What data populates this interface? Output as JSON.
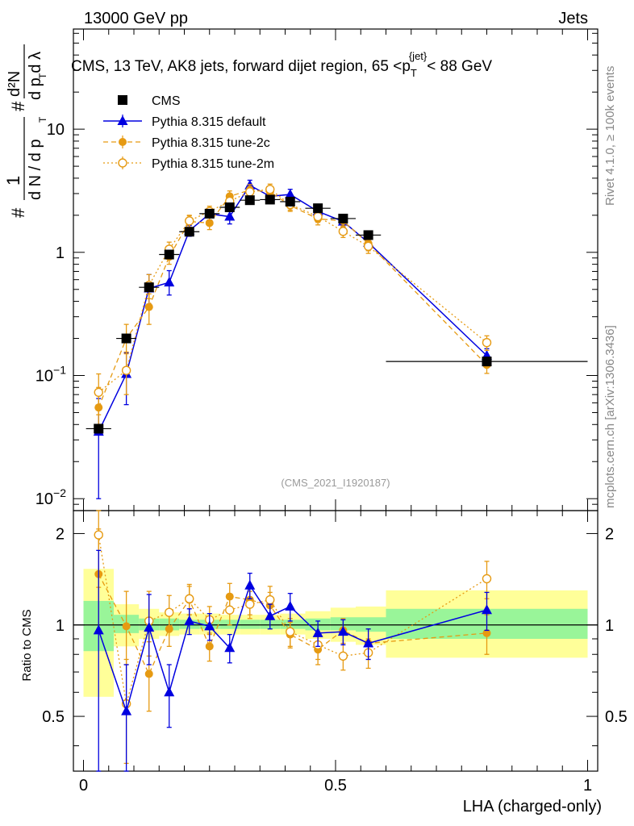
{
  "header": {
    "energy_label": "13000 GeV pp",
    "category_label": "Jets"
  },
  "side_labels": {
    "rivet": "Rivet 4.1.0, ≥ 100k events",
    "mcplots": "mcplots.cern.ch [arXiv:1306.3436]"
  },
  "colors": {
    "cms": "#000000",
    "default": "#0000e0",
    "tune2c": "#e69a12",
    "tune2m": "#e69a12",
    "band_inner": "#99f599",
    "band_outer": "#ffff99"
  },
  "chart_data": [
    {
      "type": "scatter",
      "title": "CMS, 13 TeV, AK8 jets, forward dijet region, 65 <p_T^{jet}< 88 GeV",
      "title_parts": {
        "pre": "CMS, 13 TeV, AK8 jets, forward dijet region, 65 <p",
        "sub": "T",
        "sup": "{jet}",
        "post": "< 88 GeV"
      },
      "ylabel": "1/(dN/dp_T) d²N/(dp_T dλ)",
      "ylabel_parts": {
        "frac1_num": "1",
        "frac1_den": "d N / d p",
        "frac2_num": "d²N",
        "frac2_den": "d p  d λ",
        "sub": "T",
        "hash": "#"
      },
      "yscale": "log",
      "ylim": [
        0.008,
        65
      ],
      "xlim": [
        -0.02,
        1.02
      ],
      "y_ticks": [
        {
          "v": 0.01,
          "label": "10",
          "exp": "−2"
        },
        {
          "v": 0.1,
          "label": "10",
          "exp": "−1"
        },
        {
          "v": 1,
          "label": "1"
        },
        {
          "v": 10,
          "label": "10"
        }
      ],
      "watermark": "(CMS_2021_I1920187)",
      "legend": [
        "CMS",
        "Pythia 8.315 default",
        "Pythia 8.315 tune-2c",
        "Pythia 8.315 tune-2m"
      ],
      "legend_position": "top-left",
      "series": [
        {
          "name": "CMS",
          "style": "square",
          "x": [
            0.03,
            0.085,
            0.13,
            0.17,
            0.21,
            0.25,
            0.29,
            0.33,
            0.37,
            0.41,
            0.465,
            0.515,
            0.565,
            0.8
          ],
          "y": [
            0.037,
            0.2,
            0.52,
            0.96,
            1.47,
            2.06,
            2.32,
            2.65,
            2.68,
            2.58,
            2.28,
            1.88,
            1.38,
            0.13
          ],
          "xerr": [
            0.025,
            0.02,
            0.02,
            0.02,
            0.02,
            0.02,
            0.02,
            0.02,
            0.02,
            0.02,
            0.025,
            0.025,
            0.025,
            0.2
          ]
        },
        {
          "name": "Pythia 8.315 default",
          "style": "triangle-solid",
          "x": [
            0.03,
            0.085,
            0.13,
            0.17,
            0.21,
            0.25,
            0.29,
            0.33,
            0.37,
            0.41,
            0.465,
            0.515,
            0.565,
            0.8
          ],
          "y": [
            0.035,
            0.103,
            0.51,
            0.57,
            1.5,
            2.05,
            1.95,
            3.5,
            2.85,
            2.95,
            2.15,
            1.78,
            1.2,
            0.145
          ],
          "yerr_lo": [
            0.025,
            0.045,
            0.13,
            0.12,
            0.15,
            0.22,
            0.25,
            0.35,
            0.3,
            0.3,
            0.22,
            0.18,
            0.15,
            0.02
          ],
          "yerr_hi": [
            0.03,
            0.05,
            0.15,
            0.14,
            0.15,
            0.22,
            0.25,
            0.35,
            0.3,
            0.3,
            0.22,
            0.18,
            0.15,
            0.02
          ]
        },
        {
          "name": "Pythia 8.315 tune-2c",
          "style": "circle-dashed",
          "x": [
            0.03,
            0.085,
            0.13,
            0.17,
            0.21,
            0.25,
            0.29,
            0.33,
            0.37,
            0.41,
            0.465,
            0.515,
            0.565,
            0.8
          ],
          "y": [
            0.055,
            0.2,
            0.36,
            0.92,
            1.78,
            1.73,
            2.85,
            3.2,
            3.1,
            2.4,
            1.87,
            1.8,
            1.18,
            0.122
          ],
          "yerr_lo": [
            0.02,
            0.05,
            0.1,
            0.12,
            0.2,
            0.2,
            0.3,
            0.35,
            0.3,
            0.25,
            0.2,
            0.18,
            0.15,
            0.018
          ],
          "yerr_hi": [
            0.025,
            0.06,
            0.1,
            0.12,
            0.2,
            0.2,
            0.3,
            0.35,
            0.3,
            0.25,
            0.2,
            0.18,
            0.15,
            0.018
          ]
        },
        {
          "name": "Pythia 8.315 tune-2m",
          "style": "circle-open-dotted",
          "x": [
            0.03,
            0.085,
            0.13,
            0.17,
            0.21,
            0.25,
            0.29,
            0.33,
            0.37,
            0.41,
            0.465,
            0.515,
            0.565,
            0.8
          ],
          "y": [
            0.073,
            0.11,
            0.54,
            1.06,
            1.8,
            2.15,
            2.6,
            3.1,
            3.25,
            2.45,
            1.95,
            1.48,
            1.12,
            0.185
          ],
          "yerr_lo": [
            0.025,
            0.04,
            0.12,
            0.15,
            0.2,
            0.22,
            0.28,
            0.33,
            0.33,
            0.25,
            0.2,
            0.16,
            0.14,
            0.025
          ],
          "yerr_hi": [
            0.03,
            0.045,
            0.12,
            0.15,
            0.2,
            0.22,
            0.28,
            0.33,
            0.33,
            0.25,
            0.2,
            0.16,
            0.14,
            0.025
          ]
        }
      ]
    },
    {
      "type": "scatter",
      "title": "",
      "xlabel": "LHA (charged-only)",
      "ylabel": "Ratio to CMS",
      "yscale": "log",
      "ylim": [
        0.33,
        2.38
      ],
      "xlim": [
        -0.02,
        1.02
      ],
      "y_ticks": [
        {
          "v": 0.5,
          "label": "0.5"
        },
        {
          "v": 1,
          "label": "1"
        },
        {
          "v": 2,
          "label": "2"
        }
      ],
      "x_ticks": [
        {
          "v": 0,
          "label": "0"
        },
        {
          "v": 0.5,
          "label": "0.5"
        },
        {
          "v": 1,
          "label": "1"
        }
      ],
      "bands": {
        "edges": [
          0.0,
          0.06,
          0.11,
          0.15,
          0.19,
          0.23,
          0.27,
          0.31,
          0.35,
          0.39,
          0.44,
          0.49,
          0.54,
          0.6,
          1.0
        ],
        "inner_lo": [
          0.82,
          0.94,
          0.96,
          0.96,
          0.97,
          0.97,
          0.97,
          0.97,
          0.97,
          0.97,
          0.96,
          0.96,
          0.95,
          0.9
        ],
        "inner_hi": [
          1.2,
          1.08,
          1.05,
          1.05,
          1.04,
          1.04,
          1.04,
          1.04,
          1.04,
          1.04,
          1.05,
          1.06,
          1.06,
          1.13
        ],
        "outer_lo": [
          0.58,
          0.85,
          0.9,
          0.92,
          0.93,
          0.93,
          0.93,
          0.93,
          0.93,
          0.93,
          0.9,
          0.88,
          0.86,
          0.78
        ],
        "outer_hi": [
          1.53,
          1.17,
          1.13,
          1.1,
          1.09,
          1.09,
          1.08,
          1.08,
          1.08,
          1.09,
          1.11,
          1.14,
          1.15,
          1.3
        ]
      },
      "series": [
        {
          "name": "Pythia 8.315 default",
          "style": "triangle-solid",
          "x": [
            0.03,
            0.085,
            0.13,
            0.17,
            0.21,
            0.25,
            0.29,
            0.33,
            0.37,
            0.41,
            0.465,
            0.515,
            0.565,
            0.8
          ],
          "y": [
            0.96,
            0.52,
            0.98,
            0.6,
            1.03,
            0.99,
            0.84,
            1.35,
            1.07,
            1.15,
            0.94,
            0.95,
            0.87,
            1.12
          ],
          "yerr_lo": [
            0.64,
            0.19,
            0.24,
            0.14,
            0.1,
            0.1,
            0.09,
            0.13,
            0.1,
            0.12,
            0.09,
            0.09,
            0.1,
            0.16
          ],
          "yerr_hi": [
            0.8,
            0.22,
            0.28,
            0.14,
            0.1,
            0.1,
            0.09,
            0.13,
            0.1,
            0.12,
            0.09,
            0.09,
            0.1,
            0.16
          ]
        },
        {
          "name": "Pythia 8.315 tune-2c",
          "style": "circle-dashed",
          "x": [
            0.03,
            0.085,
            0.13,
            0.17,
            0.21,
            0.25,
            0.29,
            0.33,
            0.37,
            0.41,
            0.465,
            0.515,
            0.565,
            0.8
          ],
          "y": [
            1.47,
            0.99,
            0.69,
            0.97,
            1.21,
            0.85,
            1.24,
            1.21,
            1.16,
            0.93,
            0.83,
            0.96,
            0.87,
            0.94
          ],
          "yerr_lo": [
            0.5,
            0.25,
            0.17,
            0.12,
            0.13,
            0.09,
            0.13,
            0.13,
            0.12,
            0.09,
            0.09,
            0.09,
            0.1,
            0.14
          ],
          "yerr_hi": [
            0.6,
            0.3,
            0.19,
            0.12,
            0.13,
            0.09,
            0.13,
            0.13,
            0.12,
            0.09,
            0.09,
            0.09,
            0.1,
            0.14
          ]
        },
        {
          "name": "Pythia 8.315 tune-2m",
          "style": "circle-open-dotted",
          "x": [
            0.03,
            0.085,
            0.13,
            0.17,
            0.21,
            0.25,
            0.29,
            0.33,
            0.37,
            0.41,
            0.465,
            0.515,
            0.565,
            0.8
          ],
          "y": [
            1.98,
            0.55,
            1.03,
            1.1,
            1.22,
            1.04,
            1.12,
            1.17,
            1.21,
            0.95,
            0.86,
            0.79,
            0.81,
            1.42
          ],
          "yerr_lo": [
            0.65,
            0.2,
            0.24,
            0.15,
            0.14,
            0.11,
            0.12,
            0.12,
            0.13,
            0.1,
            0.09,
            0.08,
            0.09,
            0.2
          ],
          "yerr_hi": [
            0.75,
            0.22,
            0.26,
            0.15,
            0.14,
            0.11,
            0.12,
            0.12,
            0.13,
            0.1,
            0.09,
            0.08,
            0.09,
            0.2
          ]
        }
      ]
    }
  ]
}
